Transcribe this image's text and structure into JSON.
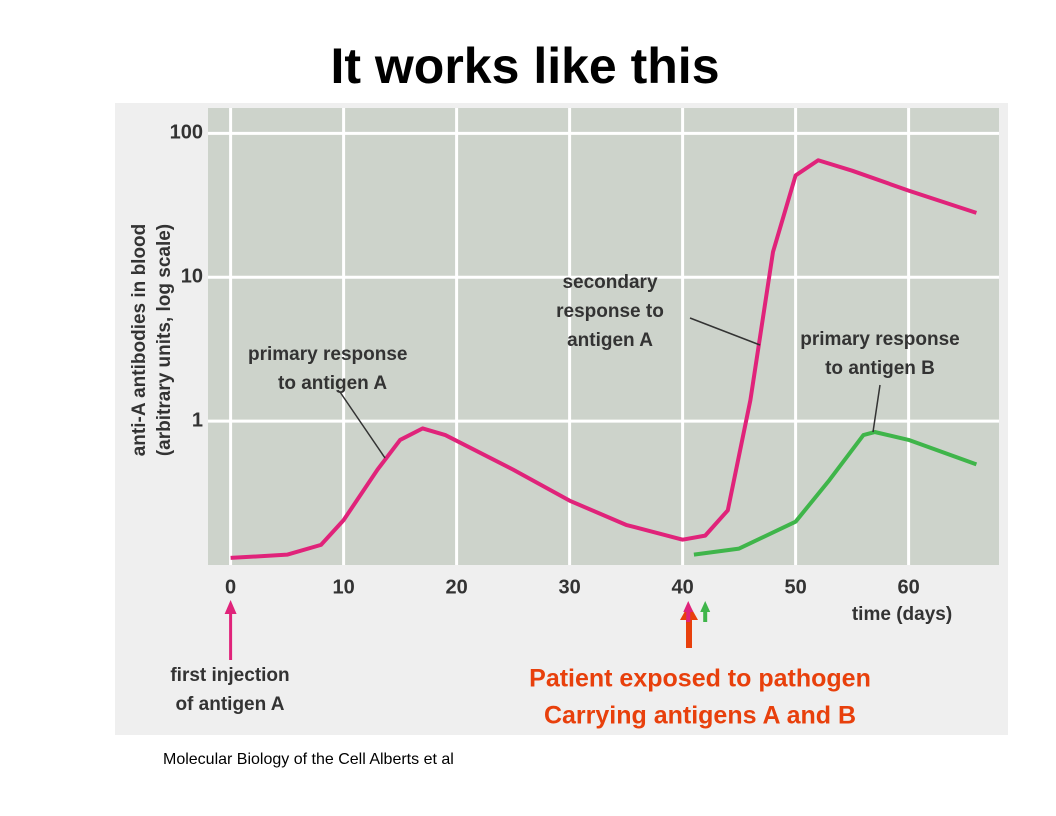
{
  "chart_data": {
    "type": "line",
    "title": "It works like this",
    "xlabel": "time (days)",
    "ylabel": [
      "anti-A antibodies in blood",
      "(arbitrary units, log scale)"
    ],
    "xlim": [
      -2,
      68
    ],
    "xticks": [
      0,
      10,
      20,
      30,
      40,
      50,
      60
    ],
    "ylim": [
      0.1,
      150
    ],
    "yticks": [
      1,
      10,
      100
    ],
    "log_y": true,
    "grid": true,
    "series": [
      {
        "color": "#e0237a",
        "x": [
          0,
          5,
          8,
          10,
          13,
          15,
          17,
          19,
          25,
          30,
          35,
          40,
          42,
          44,
          46,
          48,
          50,
          52,
          55,
          60,
          66
        ],
        "values": [
          0.112,
          0.118,
          0.138,
          0.205,
          0.46,
          0.74,
          0.89,
          0.8,
          0.46,
          0.28,
          0.19,
          0.15,
          0.16,
          0.24,
          1.4,
          15,
          51,
          65,
          55,
          40,
          28
        ]
      },
      {
        "color": "#3fb54a",
        "x": [
          41,
          45,
          50,
          53,
          56,
          57,
          60,
          66
        ],
        "values": [
          0.118,
          0.13,
          0.2,
          0.39,
          0.8,
          0.84,
          0.74,
          0.5
        ]
      }
    ],
    "annotations": [
      {
        "lines": [
          "primary response",
          "to antigen A"
        ]
      },
      {
        "lines": [
          "secondary",
          "response to",
          "antigen A"
        ]
      },
      {
        "lines": [
          "primary response",
          "to antigen B"
        ]
      },
      {
        "lines": [
          "first injection",
          "of antigen A"
        ]
      }
    ]
  },
  "callout": [
    "Patient exposed to pathogen",
    "Carrying antigens A and B"
  ],
  "source": "Molecular Biology of the Cell Alberts et al"
}
